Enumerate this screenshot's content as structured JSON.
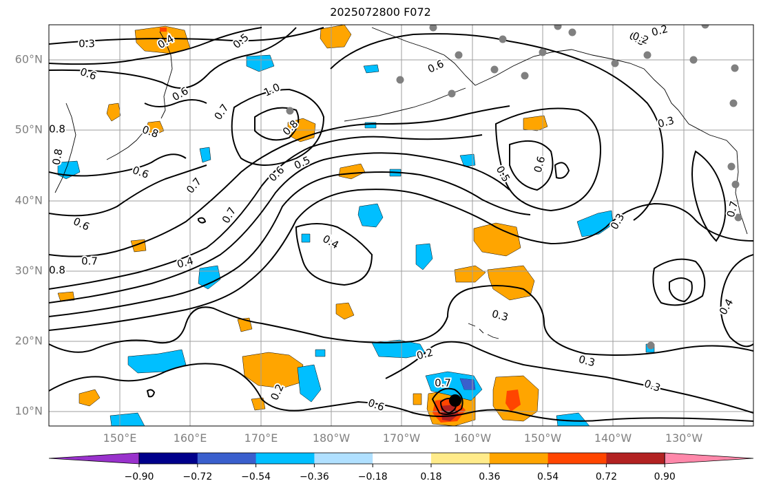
{
  "title": "2025072800 F072",
  "map": {
    "lat_ticks": [
      "60°N",
      "50°N",
      "40°N",
      "30°N",
      "20°N",
      "10°N"
    ],
    "lon_ticks": [
      "150°E",
      "160°E",
      "170°E",
      "180°W",
      "170°W",
      "160°W",
      "150°W",
      "140°W",
      "130°W"
    ],
    "contour_labels": [
      {
        "text": "0.3"
      },
      {
        "text": "0.4"
      },
      {
        "text": "0.5"
      },
      {
        "text": "0.6"
      },
      {
        "text": "0.6"
      },
      {
        "text": "0.8"
      },
      {
        "text": "1.0"
      },
      {
        "text": "0.7"
      },
      {
        "text": "0.8"
      },
      {
        "text": "0.8"
      },
      {
        "text": "0.6"
      },
      {
        "text": "0.7"
      },
      {
        "text": "0.8"
      },
      {
        "text": "0.6"
      },
      {
        "text": "0.5"
      },
      {
        "text": "0.7"
      },
      {
        "text": "0.6"
      },
      {
        "text": "0.7"
      },
      {
        "text": "0.4"
      },
      {
        "text": "0.8"
      },
      {
        "text": "0.4"
      },
      {
        "text": "0.5"
      },
      {
        "text": "0.6"
      },
      {
        "text": "0.2"
      },
      {
        "text": "0.3"
      },
      {
        "text": "0.3"
      },
      {
        "text": "0.6"
      },
      {
        "text": "0.7"
      },
      {
        "text": "0.4"
      },
      {
        "text": "0.3"
      },
      {
        "text": "0.2"
      },
      {
        "text": "0.4"
      },
      {
        "text": "0.3"
      },
      {
        "text": "0.2"
      },
      {
        "text": "0.3"
      },
      {
        "text": "0.2"
      },
      {
        "text": "0.3"
      },
      {
        "text": "0.6"
      },
      {
        "text": "0.7"
      }
    ],
    "colors": {
      "orange": "#ffa500",
      "light_blue": "#00bfff",
      "dark_red": "#b22222",
      "red": "#ff4500",
      "grid": "#9e9e9e",
      "dot": "#808080"
    }
  },
  "colorbar": {
    "tick_labels": [
      "−0.90",
      "−0.72",
      "−0.54",
      "−0.36",
      "−0.18",
      "0.18",
      "0.36",
      "0.54",
      "0.72",
      "0.90"
    ],
    "colors": [
      "#9932cc",
      "#00008b",
      "#3a5fcd",
      "#00bfff",
      "#b0e0ff",
      "#ffffff",
      "#ffeb8a",
      "#ffa500",
      "#ff4500",
      "#b22222",
      "#ff88aa"
    ]
  }
}
